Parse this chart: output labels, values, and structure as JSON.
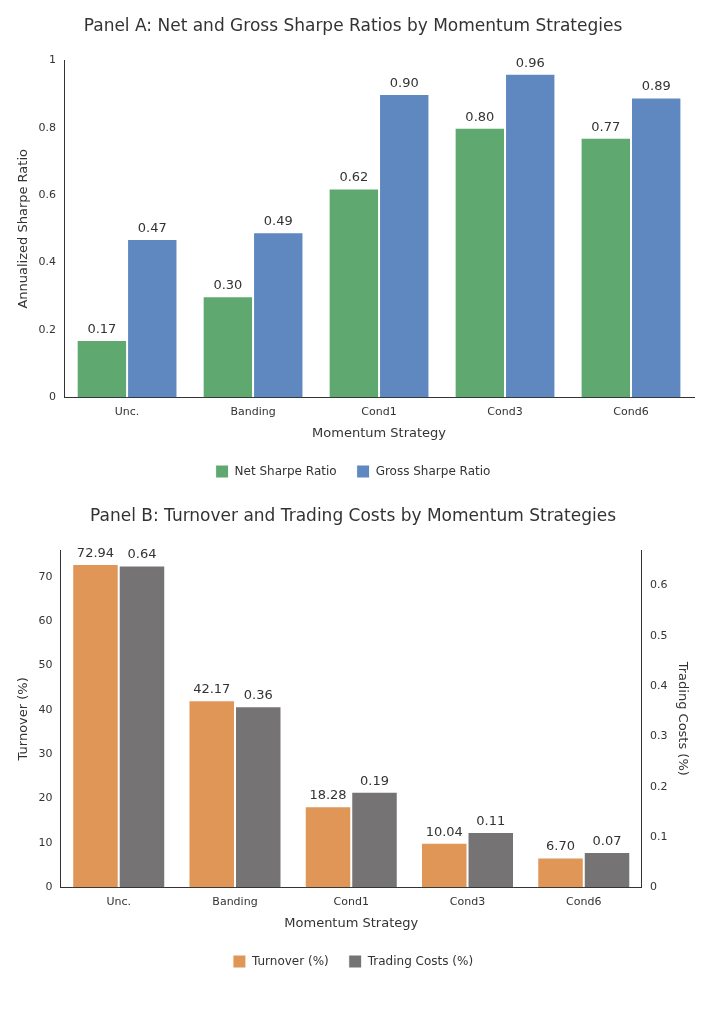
{
  "chart_data": [
    {
      "type": "bar",
      "title": "Panel A: Net and Gross Sharpe Ratios by Momentum Strategies",
      "xlabel": "Momentum Strategy",
      "ylabel": "Annualized Sharpe Ratio",
      "categories": [
        "Unc.",
        "Banding",
        "Cond1",
        "Cond3",
        "Cond6"
      ],
      "series": [
        {
          "name": "Net Sharpe Ratio",
          "color": "#5fa86f",
          "values": [
            0.17,
            0.3,
            0.62,
            0.8,
            0.77
          ],
          "value_labels": [
            "0.17",
            "0.30",
            "0.62",
            "0.80",
            "0.77"
          ]
        },
        {
          "name": "Gross Sharpe Ratio",
          "color": "#5f87c0",
          "values": [
            0.47,
            0.49,
            0.9,
            0.96,
            0.89
          ],
          "value_labels": [
            "0.47",
            "0.49",
            "0.90",
            "0.96",
            "0.89"
          ]
        }
      ],
      "ylim": [
        0,
        1
      ],
      "yticks": [
        0,
        0.2,
        0.4,
        0.6,
        0.8,
        1
      ],
      "legend": "bottom"
    },
    {
      "type": "bar",
      "title": "Panel B: Turnover and Trading Costs by Momentum Strategies",
      "xlabel": "Momentum Strategy",
      "ylabel": "Turnover (%)",
      "y2label": "Trading Costs (%)",
      "categories": [
        "Unc.",
        "Banding",
        "Cond1",
        "Cond3",
        "Cond6"
      ],
      "series": [
        {
          "name": "Turnover (%)",
          "color": "#e09657",
          "values": [
            72.94,
            42.17,
            18.28,
            10.04,
            6.7
          ],
          "value_labels": [
            "72.94",
            "42.17",
            "18.28",
            "10.04",
            "6.70"
          ]
        },
        {
          "name": "Trading Costs (%)",
          "color": "#767374",
          "axis": "y2",
          "values": [
            0.64,
            0.36,
            0.19,
            0.11,
            0.07
          ],
          "value_labels": [
            "0.64",
            "0.36",
            "0.19",
            "0.11",
            "0.07"
          ]
        }
      ],
      "ylim": [
        0,
        76
      ],
      "yticks": [
        0,
        10,
        20,
        30,
        40,
        50,
        60,
        70
      ],
      "y2lim": [
        0,
        0.67
      ],
      "y2ticks": [
        0,
        0.1,
        0.2,
        0.3,
        0.4,
        0.5,
        0.6
      ],
      "legend": "bottom"
    }
  ]
}
